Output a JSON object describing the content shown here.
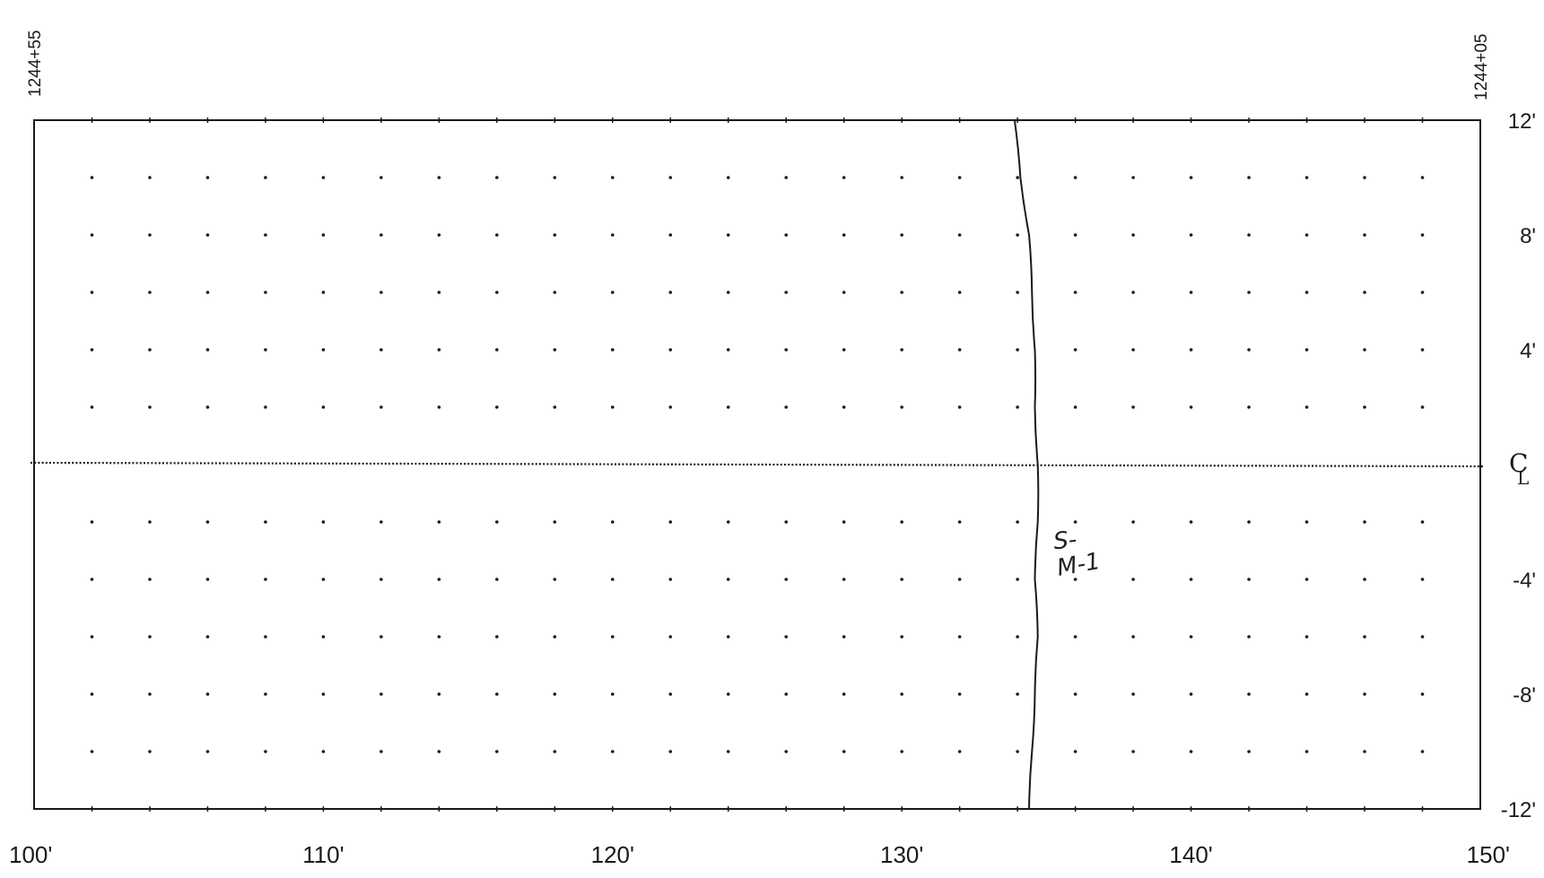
{
  "sheet": {
    "station_left": "1244+55",
    "station_right": "1244+05",
    "x_axis": {
      "min": 100,
      "max": 150,
      "labels": [
        {
          "value": 100,
          "text": "100'"
        },
        {
          "value": 110,
          "text": "110'"
        },
        {
          "value": 120,
          "text": "120'"
        },
        {
          "value": 130,
          "text": "130'"
        },
        {
          "value": 140,
          "text": "140'"
        },
        {
          "value": 150,
          "text": "150'"
        }
      ]
    },
    "y_axis": {
      "min": -12,
      "max": 12,
      "labels": [
        {
          "value": 12,
          "text": "12'"
        },
        {
          "value": 8,
          "text": "8'"
        },
        {
          "value": 4,
          "text": "4'"
        },
        {
          "value": -4,
          "text": "-4'"
        },
        {
          "value": -8,
          "text": "-8'"
        },
        {
          "value": -12,
          "text": "-12'"
        }
      ]
    },
    "centerline": {
      "value": 0,
      "symbol_main": "C",
      "symbol_sub": "L"
    },
    "grid": {
      "x_step": 2,
      "y_step": 2
    },
    "crack_line": {
      "points": [
        [
          133.9,
          12
        ],
        [
          134.1,
          10
        ],
        [
          134.4,
          8
        ],
        [
          134.5,
          6
        ],
        [
          134.6,
          4
        ],
        [
          134.6,
          2
        ],
        [
          134.7,
          0
        ],
        [
          134.7,
          -2
        ],
        [
          134.6,
          -4
        ],
        [
          134.7,
          -6
        ],
        [
          134.6,
          -8
        ],
        [
          134.5,
          -10
        ],
        [
          134.4,
          -12
        ]
      ]
    },
    "annotation": {
      "line1": "S-",
      "line2": "M-1",
      "x": 135.3,
      "y": -3.2
    },
    "colors": {
      "ink": "#1a1a1a",
      "paper": "#ffffff"
    }
  }
}
